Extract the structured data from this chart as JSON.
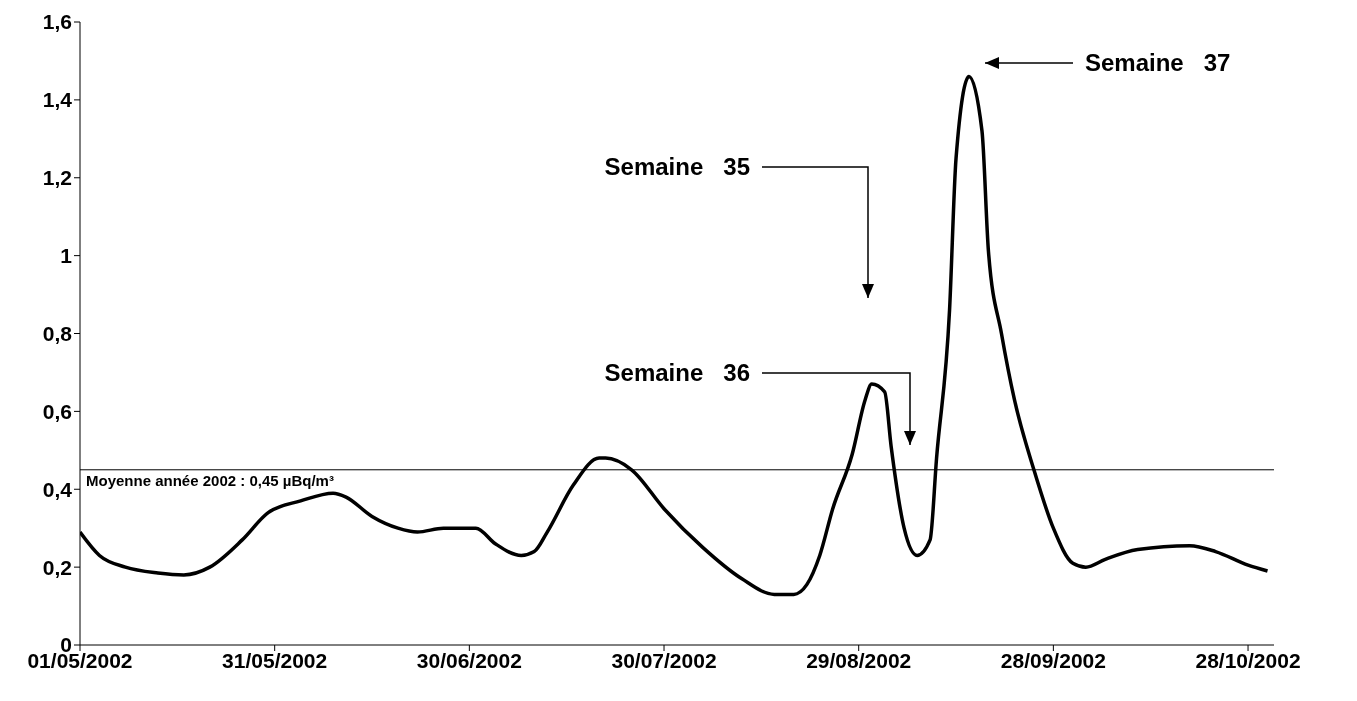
{
  "chart_data": {
    "type": "line",
    "line_style": "solid",
    "marker": "none",
    "xlim": [
      "2002-05-01",
      "2002-11-01"
    ],
    "xticks": [
      {
        "value": "2002-05-01",
        "label": "01/05/2002"
      },
      {
        "value": "2002-05-31",
        "label": "31/05/2002"
      },
      {
        "value": "2002-06-30",
        "label": "30/06/2002"
      },
      {
        "value": "2002-07-30",
        "label": "30/07/2002"
      },
      {
        "value": "2002-08-29",
        "label": "29/08/2002"
      },
      {
        "value": "2002-09-28",
        "label": "28/09/2002"
      },
      {
        "value": "2002-10-28",
        "label": "28/10/2002"
      }
    ],
    "ylim": [
      0,
      1.6
    ],
    "yticks": [
      0,
      {
        "value": 0.2,
        "label": "0,2"
      },
      {
        "value": 0.4,
        "label": "0,4"
      },
      {
        "value": 0.6,
        "label": "0,6"
      },
      {
        "value": 0.8,
        "label": "0,8"
      },
      1,
      {
        "value": 1.2,
        "label": "1,2"
      },
      {
        "value": 1.4,
        "label": "1,4"
      },
      {
        "value": 1.6,
        "label": "1,6"
      }
    ],
    "x": [
      "2002-05-01",
      "2002-05-04",
      "2002-05-08",
      "2002-05-13",
      "2002-05-17",
      "2002-05-21",
      "2002-05-26",
      "2002-05-30",
      "2002-06-04",
      "2002-06-09",
      "2002-06-11",
      "2002-06-15",
      "2002-06-19",
      "2002-06-22",
      "2002-06-26",
      "2002-07-01",
      "2002-07-04",
      "2002-07-08",
      "2002-07-10",
      "2002-07-12",
      "2002-07-16",
      "2002-07-20",
      "2002-07-21",
      "2002-07-25",
      "2002-07-30",
      "2002-08-05",
      "2002-08-11",
      "2002-08-16",
      "2002-08-19",
      "2002-08-21",
      "2002-08-23",
      "2002-08-25",
      "2002-08-28",
      "2002-08-30",
      "2002-08-31",
      "2002-09-02",
      "2002-09-03",
      "2002-09-05",
      "2002-09-07",
      "2002-09-09",
      "2002-09-10",
      "2002-09-12",
      "2002-09-13",
      "2002-09-15",
      "2002-09-17",
      "2002-09-18",
      "2002-09-20",
      "2002-09-22",
      "2002-09-25",
      "2002-09-28",
      "2002-10-01",
      "2002-10-03",
      "2002-10-06",
      "2002-10-11",
      "2002-10-19",
      "2002-10-23",
      "2002-10-28",
      "2002-10-31"
    ],
    "series": [
      {
        "color": "#000000",
        "values": [
          0.29,
          0.23,
          0.2,
          0.185,
          0.18,
          0.2,
          0.27,
          0.34,
          0.37,
          0.39,
          0.38,
          0.33,
          0.3,
          0.29,
          0.3,
          0.3,
          0.26,
          0.23,
          0.24,
          0.29,
          0.41,
          0.48,
          0.48,
          0.45,
          0.35,
          0.25,
          0.17,
          0.13,
          0.13,
          0.155,
          0.23,
          0.35,
          0.49,
          0.63,
          0.67,
          0.65,
          0.51,
          0.3,
          0.23,
          0.27,
          0.48,
          0.86,
          1.25,
          1.46,
          1.32,
          1.01,
          0.8,
          0.63,
          0.45,
          0.3,
          0.21,
          0.2,
          0.22,
          0.245,
          0.255,
          0.24,
          0.205,
          0.19
        ]
      }
    ],
    "ref_lines": [
      {
        "axis": "y",
        "value": 0.45,
        "label": "Moyenne année 2002 : 0,45 µBq/m³",
        "color": "#000000"
      }
    ],
    "annotations": [
      "Semaine   35",
      "Semaine   36",
      "Semaine   37"
    ]
  }
}
